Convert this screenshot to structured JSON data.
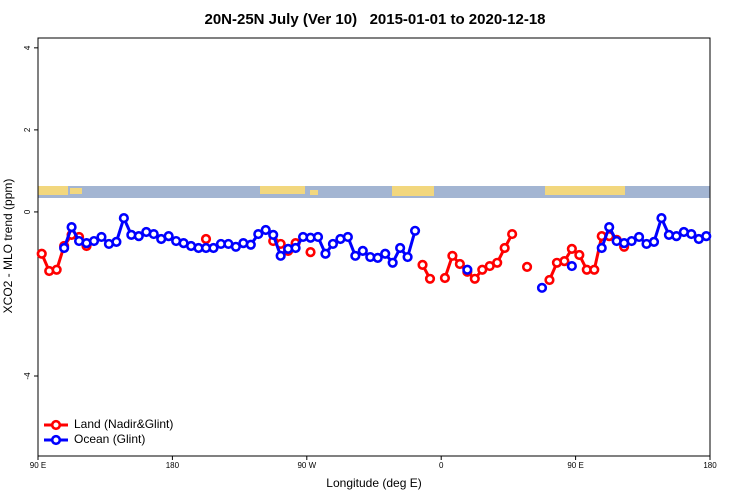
{
  "chart_data": {
    "type": "line",
    "title": "20N-25N July (Ver 10)   2015-01-01 to 2020-12-18",
    "x_label": "Longitude (deg E)",
    "y_label": "XCO2 - MLO trend (ppm)",
    "xlim": [
      90,
      540
    ],
    "xticks": [
      {
        "value": 90,
        "label": "90 E"
      },
      180,
      {
        "value": 270,
        "label": "90 W"
      },
      {
        "value": 360,
        "label": "0"
      },
      {
        "value": 450,
        "label": "90 E"
      },
      {
        "value": 540,
        "label": "180"
      }
    ],
    "ylim": [
      -5.95,
      4.24
    ],
    "yticks": [
      -4,
      0,
      2,
      4
    ],
    "legend": "bottom-left",
    "x": [
      92.5,
      97.5,
      102.5,
      107.5,
      112.5,
      117.5,
      122.5,
      127.5,
      132.5,
      137.5,
      142.5,
      147.5,
      152.5,
      157.5,
      162.5,
      167.5,
      172.5,
      177.5,
      182.5,
      187.5,
      192.5,
      197.5,
      202.5,
      207.5,
      212.5,
      217.5,
      222.5,
      227.5,
      232.5,
      237.5,
      242.5,
      247.5,
      252.5,
      257.5,
      262.5,
      267.5,
      272.5,
      277.5,
      282.5,
      287.5,
      292.5,
      297.5,
      302.5,
      307.5,
      312.5,
      317.5,
      322.5,
      327.5,
      332.5,
      337.5,
      342.5,
      347.5,
      352.5,
      357.5,
      362.5,
      367.5,
      372.5,
      377.5,
      382.5,
      387.5,
      392.5,
      397.5,
      402.5,
      407.5,
      412.5,
      417.5,
      422.5,
      427.5,
      432.5,
      437.5,
      442.5,
      447.5,
      452.5,
      457.5,
      462.5,
      467.5,
      472.5,
      477.5,
      482.5,
      487.5,
      492.5,
      497.5,
      502.5,
      507.5,
      512.5,
      517.5,
      522.5,
      527.5,
      532.5,
      537.5
    ],
    "series": [
      {
        "name": "Land (Nadir&Glint)",
        "color": "#ff0000",
        "values": [
          -1.02,
          -1.44,
          -1.41,
          -0.83,
          -0.56,
          -0.61,
          -0.83,
          null,
          null,
          null,
          null,
          null,
          null,
          null,
          null,
          null,
          null,
          null,
          null,
          null,
          null,
          null,
          -0.66,
          null,
          null,
          null,
          null,
          null,
          null,
          null,
          null,
          -0.71,
          -0.78,
          -0.95,
          -0.76,
          null,
          -0.98,
          null,
          null,
          null,
          null,
          null,
          null,
          null,
          null,
          null,
          null,
          null,
          null,
          null,
          null,
          -1.29,
          -1.63,
          null,
          -1.61,
          -1.07,
          -1.27,
          -1.46,
          -1.63,
          -1.41,
          -1.32,
          -1.24,
          -0.88,
          -0.54,
          null,
          -1.34,
          null,
          null,
          -1.66,
          -1.24,
          -1.2,
          -0.9,
          -1.05,
          -1.41,
          -1.41,
          -0.59,
          -0.59,
          -0.68,
          -0.85,
          null,
          null,
          null,
          null,
          null,
          null,
          null,
          null,
          null,
          null,
          null
        ]
      },
      {
        "name": "Ocean (Glint)",
        "color": "#0000ff",
        "values": [
          null,
          null,
          null,
          -0.88,
          -0.37,
          -0.71,
          -0.76,
          -0.71,
          -0.61,
          -0.78,
          -0.73,
          -0.15,
          -0.56,
          -0.59,
          -0.49,
          -0.54,
          -0.66,
          -0.59,
          -0.71,
          -0.76,
          -0.83,
          -0.88,
          -0.88,
          -0.88,
          -0.78,
          -0.78,
          -0.85,
          -0.76,
          -0.8,
          -0.54,
          -0.44,
          -0.56,
          -1.07,
          -0.9,
          -0.88,
          -0.61,
          -0.63,
          -0.61,
          -1.02,
          -0.78,
          -0.66,
          -0.61,
          -1.07,
          -0.95,
          -1.1,
          -1.12,
          -1.02,
          -1.24,
          -0.88,
          -1.1,
          -0.46,
          null,
          null,
          null,
          null,
          null,
          null,
          -1.41,
          null,
          null,
          null,
          null,
          null,
          null,
          null,
          null,
          null,
          -1.85,
          null,
          null,
          null,
          -1.32,
          null,
          null,
          null,
          -0.88,
          -0.37,
          -0.71,
          -0.76,
          -0.71,
          -0.61,
          -0.78,
          -0.73,
          -0.15,
          -0.56,
          -0.59,
          -0.49,
          -0.54,
          -0.66,
          -0.59
        ]
      }
    ]
  }
}
